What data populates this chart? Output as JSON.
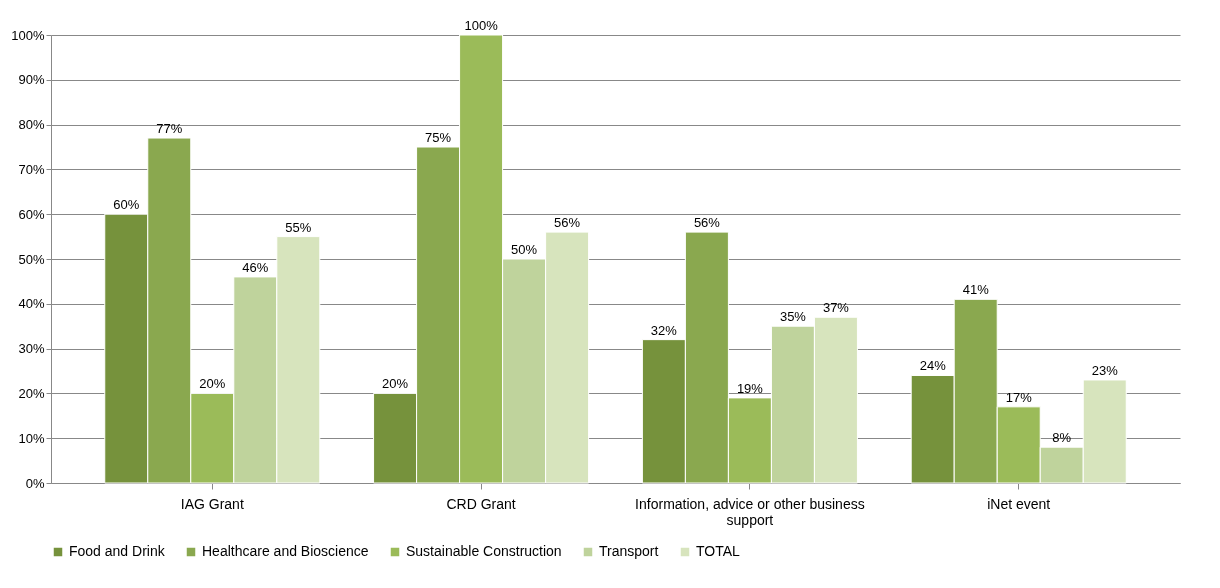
{
  "chart_data": {
    "type": "bar",
    "categories": [
      "IAG Grant",
      "CRD Grant",
      "Information, advice or other business support",
      "iNet event"
    ],
    "series": [
      {
        "name": "Food and Drink",
        "color": "#76923c",
        "values": [
          60,
          20,
          32,
          24
        ],
        "value_labels": [
          "60%",
          "20%",
          "32%",
          "24%"
        ]
      },
      {
        "name": "Healthcare and Bioscience",
        "color": "#8aa84f",
        "values": [
          77,
          75,
          56,
          41
        ],
        "value_labels": [
          "77%",
          "75%",
          "56%",
          "41%"
        ]
      },
      {
        "name": "Sustainable Construction",
        "color": "#9bbb59",
        "values": [
          20,
          100,
          19,
          17
        ],
        "value_labels": [
          "20%",
          "100%",
          "19%",
          "17%"
        ]
      },
      {
        "name": "Transport",
        "color": "#bfd39c",
        "values": [
          46,
          50,
          35,
          8
        ],
        "value_labels": [
          "46%",
          "50%",
          "35%",
          "8%"
        ]
      },
      {
        "name": "TOTAL",
        "color": "#d7e4bd",
        "values": [
          55,
          56,
          37,
          23
        ],
        "value_labels": [
          "55%",
          "56%",
          "37%",
          "23%"
        ]
      }
    ],
    "ylim": [
      0,
      100
    ],
    "yticks": [
      {
        "value": 0,
        "label": "0%"
      },
      {
        "value": 10,
        "label": "10%"
      },
      {
        "value": 20,
        "label": "20%"
      },
      {
        "value": 30,
        "label": "30%"
      },
      {
        "value": 40,
        "label": "40%"
      },
      {
        "value": 50,
        "label": "50%"
      },
      {
        "value": 60,
        "label": "60%"
      },
      {
        "value": 70,
        "label": "70%"
      },
      {
        "value": 80,
        "label": "80%"
      },
      {
        "value": 90,
        "label": "90%"
      },
      {
        "value": 100,
        "label": "100%"
      }
    ],
    "grid": "y",
    "legend": "bottom"
  }
}
